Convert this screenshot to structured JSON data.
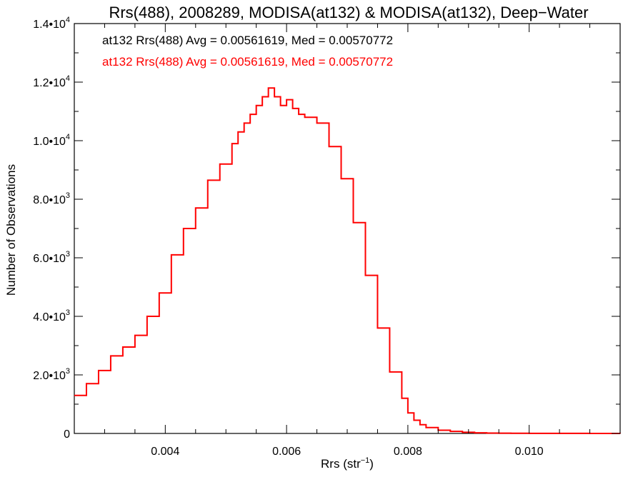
{
  "chart_data": {
    "type": "line",
    "step": true,
    "title": "Rrs(488), 2008289, MODISA(at132) & MODISA(at132), Deep−Water",
    "xlabel_main": "Rrs (str",
    "xlabel_sup": "−1",
    "xlabel_close": ")",
    "ylabel": "Number of Observations",
    "xlim": [
      0.0025,
      0.0115
    ],
    "ylim": [
      0,
      14000
    ],
    "x_ticks": [
      {
        "value": 0.004,
        "label": "0.004"
      },
      {
        "value": 0.006,
        "label": "0.006"
      },
      {
        "value": 0.008,
        "label": "0.008"
      },
      {
        "value": 0.01,
        "label": "0.010"
      }
    ],
    "x_minor_step": 0.0005,
    "y_ticks": [
      {
        "value": 0,
        "label": "0",
        "exp": ""
      },
      {
        "value": 2000,
        "label": "2.0•10",
        "exp": "3"
      },
      {
        "value": 4000,
        "label": "4.0•10",
        "exp": "3"
      },
      {
        "value": 6000,
        "label": "6.0•10",
        "exp": "3"
      },
      {
        "value": 8000,
        "label": "8.0•10",
        "exp": "3"
      },
      {
        "value": 10000,
        "label": "1.0•10",
        "exp": "4"
      },
      {
        "value": 12000,
        "label": "1.2•10",
        "exp": "4"
      },
      {
        "value": 14000,
        "label": "1.4•10",
        "exp": "4"
      }
    ],
    "y_minor_step": 1000,
    "annotations": [
      {
        "text": "at132 Rrs(488) Avg = 0.00561619, Med = 0.00570772",
        "color": "#000000"
      },
      {
        "text": "at132 Rrs(488) Avg = 0.00561619, Med = 0.00570772",
        "color": "#ff0000"
      }
    ],
    "series": [
      {
        "color": "#ff0000",
        "x": [
          0.0025,
          0.0027,
          0.0029,
          0.0031,
          0.0033,
          0.0035,
          0.0037,
          0.0039,
          0.0041,
          0.0043,
          0.0045,
          0.0047,
          0.0049,
          0.0051,
          0.0052,
          0.0053,
          0.0054,
          0.0055,
          0.0056,
          0.0057,
          0.0058,
          0.0059,
          0.006,
          0.0061,
          0.0062,
          0.0063,
          0.0065,
          0.0067,
          0.0069,
          0.0071,
          0.0073,
          0.0075,
          0.0077,
          0.0079,
          0.008,
          0.0081,
          0.0082,
          0.0083,
          0.0085,
          0.0087,
          0.0089,
          0.0091,
          0.0093,
          0.0095,
          0.0097,
          0.01,
          0.0105,
          0.011,
          0.0115
        ],
        "values": [
          1300,
          1700,
          2150,
          2650,
          2950,
          3350,
          4000,
          4800,
          6100,
          7000,
          7700,
          8650,
          9200,
          9900,
          10300,
          10600,
          10900,
          11200,
          11500,
          11800,
          11500,
          11200,
          11400,
          11100,
          10900,
          10800,
          10600,
          9800,
          8700,
          7200,
          5400,
          3600,
          2100,
          1200,
          700,
          450,
          300,
          200,
          110,
          70,
          40,
          20,
          12,
          8,
          5,
          3,
          2,
          1,
          0
        ]
      }
    ]
  }
}
